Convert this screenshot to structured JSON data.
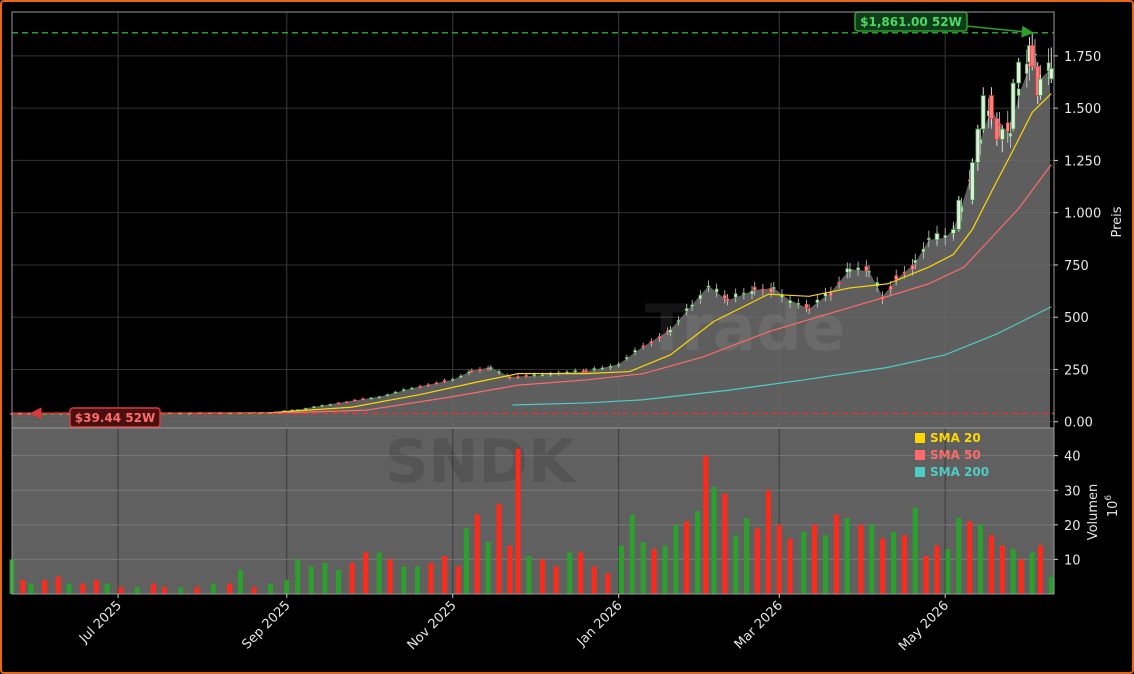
{
  "chart_data": {
    "type": "candlestick",
    "ticker_watermark": "SNDK",
    "brand_watermark": "Trade",
    "x_range": [
      "2025-05-23",
      "2026-06-10"
    ],
    "x_ticks": [
      {
        "label": "Jul 2025",
        "date": "2025-07-01"
      },
      {
        "label": "Sep 2025",
        "date": "2025-09-01"
      },
      {
        "label": "Nov 2025",
        "date": "2025-11-01"
      },
      {
        "label": "Jan 2026",
        "date": "2026-01-01"
      },
      {
        "label": "Mar 2026",
        "date": "2026-03-01"
      },
      {
        "label": "May 2026",
        "date": "2026-05-01"
      }
    ],
    "price_panel": {
      "ylabel": "Preis",
      "ylim": [
        -30,
        1960
      ],
      "y_ticks": [
        {
          "label": "0.00",
          "value": 0
        },
        {
          "label": "250",
          "value": 250
        },
        {
          "label": "500",
          "value": 500
        },
        {
          "label": "750",
          "value": 750
        },
        {
          "label": "1.000",
          "value": 1000
        },
        {
          "label": "1.250",
          "value": 1250
        },
        {
          "label": "1.500",
          "value": 1500
        },
        {
          "label": "1.750",
          "value": 1750
        }
      ],
      "last_close": 1690,
      "high_52w": {
        "value": 1861,
        "label": "$1,861.00 52W",
        "date": "2026-06-02"
      },
      "low_52w": {
        "value": 39.44,
        "label": "$39.44 52W",
        "date": "2025-05-30"
      },
      "close_series": [
        [
          "2025-05-23",
          40
        ],
        [
          "2025-06-15",
          40
        ],
        [
          "2025-07-15",
          41
        ],
        [
          "2025-08-05",
          42
        ],
        [
          "2025-08-25",
          44
        ],
        [
          "2025-09-05",
          58
        ],
        [
          "2025-09-20",
          90
        ],
        [
          "2025-10-05",
          120
        ],
        [
          "2025-10-20",
          170
        ],
        [
          "2025-11-01",
          200
        ],
        [
          "2025-11-08",
          245
        ],
        [
          "2025-11-15",
          260
        ],
        [
          "2025-11-22",
          215
        ],
        [
          "2025-12-01",
          220
        ],
        [
          "2025-12-10",
          235
        ],
        [
          "2025-12-20",
          240
        ],
        [
          "2026-01-01",
          275
        ],
        [
          "2026-01-10",
          360
        ],
        [
          "2026-01-20",
          440
        ],
        [
          "2026-01-28",
          560
        ],
        [
          "2026-02-03",
          650
        ],
        [
          "2026-02-10",
          580
        ],
        [
          "2026-02-20",
          630
        ],
        [
          "2026-02-27",
          640
        ],
        [
          "2026-03-05",
          580
        ],
        [
          "2026-03-12",
          540
        ],
        [
          "2026-03-20",
          620
        ],
        [
          "2026-03-27",
          730
        ],
        [
          "2026-04-03",
          720
        ],
        [
          "2026-04-08",
          600
        ],
        [
          "2026-04-13",
          680
        ],
        [
          "2026-04-20",
          760
        ],
        [
          "2026-04-25",
          870
        ],
        [
          "2026-05-01",
          880
        ],
        [
          "2026-05-04",
          920
        ],
        [
          "2026-05-07",
          1030
        ],
        [
          "2026-05-11",
          1200
        ],
        [
          "2026-05-14",
          1350
        ],
        [
          "2026-05-18",
          1500
        ],
        [
          "2026-05-21",
          1420
        ],
        [
          "2026-05-25",
          1380
        ],
        [
          "2026-05-28",
          1560
        ],
        [
          "2026-06-01",
          1700
        ],
        [
          "2026-06-03",
          1760
        ],
        [
          "2026-06-05",
          1640
        ],
        [
          "2026-06-09",
          1690
        ]
      ],
      "candles": [
        [
          "2026-04-28",
          870,
          910,
          850,
          900
        ],
        [
          "2026-05-04",
          900,
          940,
          880,
          920
        ],
        [
          "2026-05-06",
          920,
          1080,
          910,
          1060
        ],
        [
          "2026-05-11",
          1060,
          1260,
          1040,
          1240
        ],
        [
          "2026-05-13",
          1240,
          1420,
          1200,
          1400
        ],
        [
          "2026-05-15",
          1400,
          1600,
          1380,
          1560
        ],
        [
          "2026-05-18",
          1560,
          1600,
          1420,
          1450
        ],
        [
          "2026-05-20",
          1450,
          1480,
          1320,
          1350
        ],
        [
          "2026-05-22",
          1350,
          1420,
          1290,
          1400
        ],
        [
          "2026-05-26",
          1400,
          1640,
          1390,
          1620
        ],
        [
          "2026-05-28",
          1620,
          1740,
          1600,
          1720
        ],
        [
          "2026-06-01",
          1720,
          1840,
          1700,
          1800
        ],
        [
          "2026-06-02",
          1800,
          1861,
          1680,
          1700
        ],
        [
          "2026-06-04",
          1700,
          1720,
          1520,
          1560
        ],
        [
          "2026-06-05",
          1560,
          1660,
          1540,
          1640
        ],
        [
          "2026-06-09",
          1640,
          1790,
          1620,
          1690
        ]
      ],
      "sma": [
        {
          "name": "SMA 20",
          "color": "#ffd700",
          "points": [
            [
              "2025-05-23",
              40
            ],
            [
              "2025-08-25",
              42
            ],
            [
              "2025-09-25",
              70
            ],
            [
              "2025-10-20",
              130
            ],
            [
              "2025-11-10",
              190
            ],
            [
              "2025-11-25",
              230
            ],
            [
              "2025-12-20",
              230
            ],
            [
              "2026-01-05",
              240
            ],
            [
              "2026-01-20",
              320
            ],
            [
              "2026-02-05",
              480
            ],
            [
              "2026-02-25",
              610
            ],
            [
              "2026-03-12",
              600
            ],
            [
              "2026-03-27",
              640
            ],
            [
              "2026-04-10",
              660
            ],
            [
              "2026-04-25",
              740
            ],
            [
              "2026-05-04",
              800
            ],
            [
              "2026-05-11",
              920
            ],
            [
              "2026-05-18",
              1100
            ],
            [
              "2026-05-26",
              1300
            ],
            [
              "2026-06-02",
              1480
            ],
            [
              "2026-06-09",
              1570
            ]
          ]
        },
        {
          "name": "SMA 50",
          "color": "#ff6b6b",
          "points": [
            [
              "2025-05-23",
              40
            ],
            [
              "2025-08-25",
              40
            ],
            [
              "2025-09-30",
              55
            ],
            [
              "2025-11-01",
              120
            ],
            [
              "2025-11-25",
              175
            ],
            [
              "2025-12-20",
              200
            ],
            [
              "2026-01-10",
              230
            ],
            [
              "2026-02-01",
              310
            ],
            [
              "2026-02-25",
              430
            ],
            [
              "2026-03-20",
              520
            ],
            [
              "2026-04-10",
              600
            ],
            [
              "2026-04-25",
              660
            ],
            [
              "2026-05-08",
              740
            ],
            [
              "2026-05-18",
              880
            ],
            [
              "2026-05-28",
              1020
            ],
            [
              "2026-06-09",
              1230
            ]
          ]
        },
        {
          "name": "SMA 200",
          "color": "#4ecdc4",
          "points": [
            [
              "2025-11-23",
              80
            ],
            [
              "2025-12-20",
              90
            ],
            [
              "2026-01-10",
              105
            ],
            [
              "2026-02-10",
              150
            ],
            [
              "2026-03-10",
              200
            ],
            [
              "2026-04-10",
              260
            ],
            [
              "2026-05-01",
              320
            ],
            [
              "2026-05-20",
              420
            ],
            [
              "2026-06-09",
              550
            ]
          ]
        }
      ]
    },
    "volume_panel": {
      "ylabel": "Volumen",
      "unit": "10",
      "unit_exponent": "6",
      "ylim": [
        0,
        48
      ],
      "y_ticks": [
        {
          "label": "10",
          "value": 10
        },
        {
          "label": "20",
          "value": 20
        },
        {
          "label": "30",
          "value": 30
        },
        {
          "label": "40",
          "value": 40
        }
      ],
      "bars": [
        [
          "2025-05-23",
          10,
          "up"
        ],
        [
          "2025-05-27",
          4,
          "dn"
        ],
        [
          "2025-05-30",
          3,
          "up"
        ],
        [
          "2025-06-04",
          4,
          "dn"
        ],
        [
          "2025-06-09",
          5,
          "dn"
        ],
        [
          "2025-06-13",
          3,
          "up"
        ],
        [
          "2025-06-18",
          3,
          "dn"
        ],
        [
          "2025-06-23",
          4,
          "dn"
        ],
        [
          "2025-06-27",
          3,
          "up"
        ],
        [
          "2025-07-02",
          2,
          "dn"
        ],
        [
          "2025-07-08",
          2,
          "up"
        ],
        [
          "2025-07-14",
          3,
          "dn"
        ],
        [
          "2025-07-18",
          2,
          "dn"
        ],
        [
          "2025-07-24",
          2,
          "up"
        ],
        [
          "2025-07-30",
          2,
          "dn"
        ],
        [
          "2025-08-05",
          3,
          "up"
        ],
        [
          "2025-08-11",
          3,
          "dn"
        ],
        [
          "2025-08-15",
          7,
          "up"
        ],
        [
          "2025-08-20",
          2,
          "dn"
        ],
        [
          "2025-08-26",
          3,
          "up"
        ],
        [
          "2025-09-01",
          4,
          "up"
        ],
        [
          "2025-09-05",
          10,
          "up"
        ],
        [
          "2025-09-10",
          8,
          "up"
        ],
        [
          "2025-09-15",
          9,
          "up"
        ],
        [
          "2025-09-20",
          7,
          "up"
        ],
        [
          "2025-09-25",
          9,
          "dn"
        ],
        [
          "2025-09-30",
          12,
          "dn"
        ],
        [
          "2025-10-05",
          12,
          "up"
        ],
        [
          "2025-10-09",
          10,
          "dn"
        ],
        [
          "2025-10-14",
          8,
          "up"
        ],
        [
          "2025-10-19",
          8,
          "up"
        ],
        [
          "2025-10-24",
          9,
          "dn"
        ],
        [
          "2025-10-29",
          11,
          "dn"
        ],
        [
          "2025-11-03",
          8,
          "dn"
        ],
        [
          "2025-11-06",
          19,
          "up"
        ],
        [
          "2025-11-10",
          23,
          "dn"
        ],
        [
          "2025-11-14",
          15,
          "up"
        ],
        [
          "2025-11-18",
          26,
          "dn"
        ],
        [
          "2025-11-22",
          14,
          "dn"
        ],
        [
          "2025-11-25",
          42,
          "dn"
        ],
        [
          "2025-11-29",
          11,
          "up"
        ],
        [
          "2025-12-04",
          10,
          "dn"
        ],
        [
          "2025-12-09",
          8,
          "dn"
        ],
        [
          "2025-12-14",
          12,
          "up"
        ],
        [
          "2025-12-18",
          12,
          "dn"
        ],
        [
          "2025-12-23",
          8,
          "dn"
        ],
        [
          "2025-12-28",
          6,
          "dn"
        ],
        [
          "2026-01-02",
          14,
          "up"
        ],
        [
          "2026-01-06",
          23,
          "up"
        ],
        [
          "2026-01-10",
          15,
          "up"
        ],
        [
          "2026-01-14",
          13,
          "dn"
        ],
        [
          "2026-01-18",
          14,
          "up"
        ],
        [
          "2026-01-22",
          20,
          "up"
        ],
        [
          "2026-01-26",
          21,
          "dn"
        ],
        [
          "2026-01-30",
          24,
          "up"
        ],
        [
          "2026-02-02",
          40,
          "dn"
        ],
        [
          "2026-02-05",
          31,
          "up"
        ],
        [
          "2026-02-09",
          29,
          "dn"
        ],
        [
          "2026-02-13",
          17,
          "up"
        ],
        [
          "2026-02-17",
          22,
          "up"
        ],
        [
          "2026-02-21",
          19,
          "dn"
        ],
        [
          "2026-02-25",
          30,
          "dn"
        ],
        [
          "2026-03-01",
          20,
          "dn"
        ],
        [
          "2026-03-05",
          16,
          "dn"
        ],
        [
          "2026-03-10",
          18,
          "up"
        ],
        [
          "2026-03-14",
          20,
          "dn"
        ],
        [
          "2026-03-18",
          17,
          "up"
        ],
        [
          "2026-03-22",
          23,
          "dn"
        ],
        [
          "2026-03-26",
          22,
          "up"
        ],
        [
          "2026-03-31",
          20,
          "dn"
        ],
        [
          "2026-04-04",
          20,
          "up"
        ],
        [
          "2026-04-08",
          16,
          "dn"
        ],
        [
          "2026-04-12",
          18,
          "up"
        ],
        [
          "2026-04-16",
          17,
          "dn"
        ],
        [
          "2026-04-20",
          25,
          "up"
        ],
        [
          "2026-04-24",
          11,
          "dn"
        ],
        [
          "2026-04-28",
          14,
          "dn"
        ],
        [
          "2026-05-02",
          13,
          "up"
        ],
        [
          "2026-05-06",
          22,
          "up"
        ],
        [
          "2026-05-10",
          21,
          "dn"
        ],
        [
          "2026-05-14",
          20,
          "up"
        ],
        [
          "2026-05-18",
          17,
          "dn"
        ],
        [
          "2026-05-22",
          14,
          "dn"
        ],
        [
          "2026-05-26",
          13,
          "up"
        ],
        [
          "2026-05-29",
          10,
          "dn"
        ],
        [
          "2026-06-02",
          12,
          "up"
        ],
        [
          "2026-06-05",
          14,
          "dn"
        ],
        [
          "2026-06-09",
          5,
          "up"
        ]
      ]
    },
    "legend": {
      "placement": "volume-panel-top-right",
      "entries": [
        {
          "label": "SMA 20",
          "color": "#ffd700"
        },
        {
          "label": "SMA 50",
          "color": "#ff6b6b"
        },
        {
          "label": "SMA 200",
          "color": "#4ecdc4"
        }
      ]
    },
    "colors": {
      "up": "#2ca02c",
      "down": "#ff2a1a",
      "high_line": "#2ca02c",
      "low_line": "#d93a3a",
      "area_fill": "#6e6e6e",
      "frame": "#e8651c"
    },
    "grid": true
  }
}
